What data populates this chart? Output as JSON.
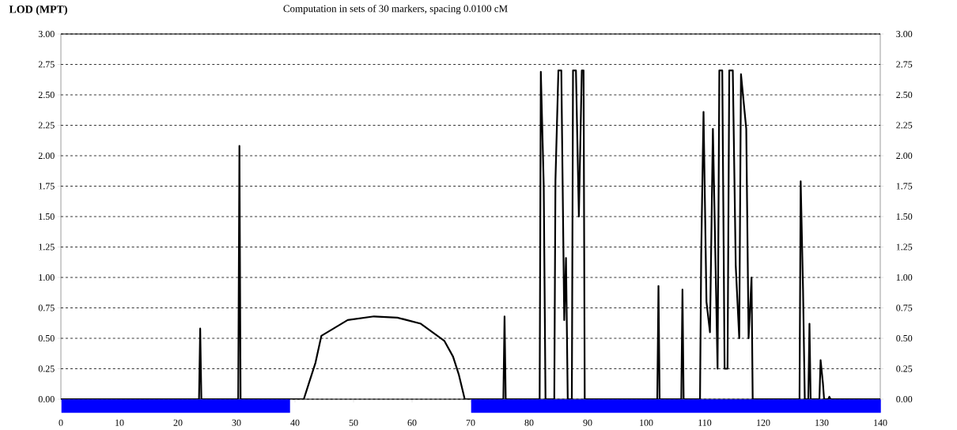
{
  "chart_data": {
    "type": "line",
    "title": "Computation in sets of 30 markers, spacing 0.0100 cM",
    "ylabel": "LOD (MPT)",
    "series": [
      {
        "color": "#000000",
        "x": [
          0,
          23.6,
          23.8,
          24.0,
          30.3,
          30.5,
          30.7,
          41.5,
          42.5,
          43.5,
          44.5,
          49,
          53.5,
          57.5,
          61.5,
          65.5,
          67,
          68,
          69,
          75.6,
          75.8,
          76.0,
          81.8,
          82,
          82.5,
          82.8,
          84.3,
          84.5,
          85,
          85.5,
          86,
          86.3,
          86.6,
          87.3,
          87.5,
          88,
          88.5,
          89,
          89.3,
          89.5,
          101.9,
          102.1,
          102.3,
          106.0,
          106.2,
          106.4,
          109.2,
          109.4,
          109.8,
          110.3,
          110.9,
          111.4,
          112.2,
          112.5,
          113.0,
          113.4,
          113.9,
          114.2,
          114.8,
          115.3,
          115.9,
          116.2,
          117.1,
          117.5,
          118,
          118.2,
          126.2,
          126.4,
          126.8,
          127.1,
          127.7,
          127.9,
          128.1,
          129.6,
          129.8,
          130.2,
          130.4,
          131.1,
          131.3,
          131.5,
          140
        ],
        "values": [
          0,
          0,
          0.58,
          0,
          0,
          2.08,
          0,
          0,
          0.15,
          0.3,
          0.52,
          0.65,
          0.68,
          0.67,
          0.62,
          0.48,
          0.35,
          0.2,
          0,
          0,
          0.68,
          0,
          0,
          2.69,
          1.75,
          0,
          0,
          1.8,
          2.7,
          2.7,
          0.65,
          1.16,
          0,
          0,
          2.7,
          2.7,
          1.5,
          2.7,
          2.7,
          0,
          0,
          0.93,
          0,
          0,
          0.9,
          0,
          0,
          1.18,
          2.36,
          0.8,
          0.55,
          2.22,
          0.25,
          2.7,
          2.7,
          0.25,
          0.25,
          2.7,
          2.7,
          1.1,
          0.5,
          2.67,
          2.22,
          0.5,
          1.0,
          0,
          0,
          1.79,
          0.9,
          0,
          0,
          0.62,
          0,
          0,
          0.32,
          0.13,
          0,
          0,
          0.02,
          0,
          0
        ]
      }
    ],
    "xlim": [
      0,
      140
    ],
    "xticks": [
      0,
      10,
      20,
      30,
      40,
      50,
      60,
      70,
      80,
      90,
      100,
      110,
      120,
      130,
      140
    ],
    "ylim": [
      0,
      3.0
    ],
    "yticks": [
      {
        "value": 0,
        "label": "0.00"
      },
      {
        "value": 0.25,
        "label": "0.25"
      },
      {
        "value": 0.5,
        "label": "0.50"
      },
      {
        "value": 0.75,
        "label": "0.75"
      },
      {
        "value": 1,
        "label": "1.00"
      },
      {
        "value": 1.25,
        "label": "1.25"
      },
      {
        "value": 1.5,
        "label": "1.50"
      },
      {
        "value": 1.75,
        "label": "1.75"
      },
      {
        "value": 2,
        "label": "2.00"
      },
      {
        "value": 2.25,
        "label": "2.25"
      },
      {
        "value": 2.5,
        "label": "2.50"
      },
      {
        "value": 2.75,
        "label": "2.75"
      },
      {
        "value": 3,
        "label": "3.00"
      }
    ],
    "y2lim": [
      0,
      3.0
    ],
    "y2ticks": [
      {
        "value": 0,
        "label": "0.00"
      },
      {
        "value": 0.25,
        "label": "0.25"
      },
      {
        "value": 0.5,
        "label": "0.50"
      },
      {
        "value": 0.75,
        "label": "0.75"
      },
      {
        "value": 1,
        "label": "1.00"
      },
      {
        "value": 1.25,
        "label": "1.25"
      },
      {
        "value": 1.5,
        "label": "1.50"
      },
      {
        "value": 1.75,
        "label": "1.75"
      },
      {
        "value": 2,
        "label": "2.00"
      },
      {
        "value": 2.25,
        "label": "2.25"
      },
      {
        "value": 2.5,
        "label": "2.50"
      },
      {
        "value": 2.75,
        "label": "2.75"
      },
      {
        "value": 3,
        "label": "3.00"
      }
    ],
    "grid": "y",
    "marker": "none",
    "line_style": "solid"
  }
}
